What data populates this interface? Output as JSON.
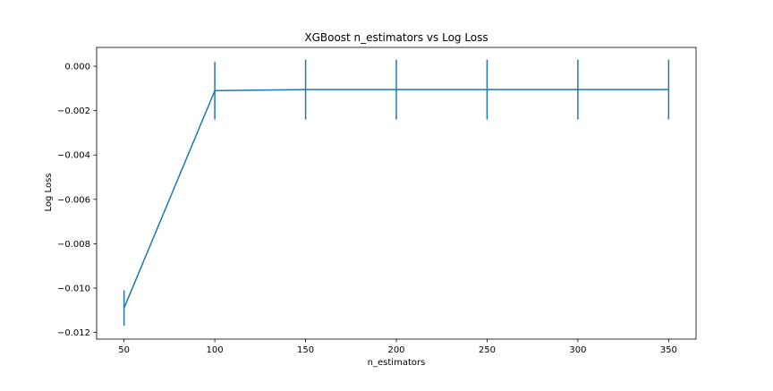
{
  "chart_data": {
    "type": "line",
    "title": "XGBoost n_estimators vs Log Loss",
    "xlabel": "n_estimators",
    "ylabel": "Log Loss",
    "x": [
      50,
      100,
      150,
      200,
      250,
      300,
      350
    ],
    "series": [
      {
        "values": [
          -0.0109,
          -0.0011,
          -0.00105,
          -0.00105,
          -0.00105,
          -0.00105,
          -0.00105
        ],
        "errors": [
          0.0008,
          0.0013,
          0.00135,
          0.00135,
          0.00135,
          0.00135,
          0.00135
        ],
        "color": "#1f77b4"
      }
    ],
    "xticks": [
      50,
      100,
      150,
      200,
      250,
      300,
      350
    ],
    "xtick_labels": [
      "50",
      "100",
      "150",
      "200",
      "250",
      "300",
      "350"
    ],
    "yticks": [
      0.0,
      -0.002,
      -0.004,
      -0.006,
      -0.008,
      -0.01,
      -0.012
    ],
    "ytick_labels": [
      "0.000",
      "−0.002",
      "−0.004",
      "−0.006",
      "−0.008",
      "−0.010",
      "−0.012"
    ],
    "xlim": [
      34.9,
      365.1
    ],
    "ylim": [
      -0.0123,
      0.00085
    ],
    "grid": false,
    "legend": "none"
  }
}
